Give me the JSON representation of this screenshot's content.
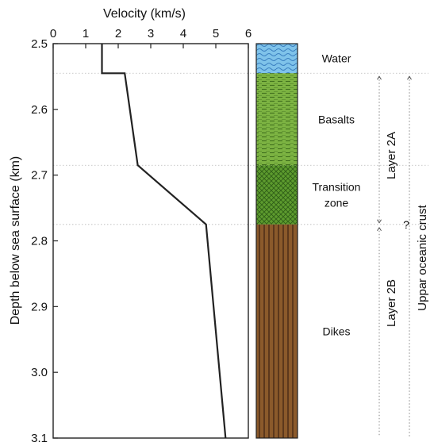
{
  "chart_data": {
    "type": "line",
    "title": "",
    "xlabel": "Velocity (km/s)",
    "ylabel": "Depth below sea surface (km)",
    "xlim": [
      0,
      6
    ],
    "ylim": [
      2.5,
      3.1
    ],
    "x_axis_position": "top",
    "y_inverted": true,
    "grid": false,
    "xticks": [
      0,
      1,
      2,
      3,
      4,
      5,
      6
    ],
    "yticks": [
      2.5,
      2.6,
      2.7,
      2.8,
      2.9,
      3.0,
      3.1
    ],
    "xtick_labels": [
      "0",
      "1",
      "2",
      "3",
      "4",
      "5",
      "6"
    ],
    "ytick_labels": [
      "2.5",
      "2.6",
      "2.7",
      "2.8",
      "2.9",
      "3.0",
      "3.1"
    ],
    "series": [
      {
        "color": "#222222",
        "points": [
          [
            1.5,
            2.5
          ],
          [
            1.5,
            2.545
          ],
          [
            2.2,
            2.545
          ],
          [
            2.6,
            2.685
          ],
          [
            4.7,
            2.775
          ],
          [
            5.3,
            3.1
          ]
        ]
      }
    ],
    "boundaries": [
      2.545,
      2.685,
      2.775
    ],
    "column": {
      "zones": [
        {
          "label_lines": [
            "Water"
          ],
          "top": 2.5,
          "bottom": 2.545,
          "fill": "#7fc3ea",
          "pattern": "waves"
        },
        {
          "label_lines": [
            "Basalts"
          ],
          "top": 2.545,
          "bottom": 2.685,
          "fill": "#7cb342",
          "pattern": "dashes"
        },
        {
          "label_lines": [
            "Transition",
            "zone"
          ],
          "top": 2.685,
          "bottom": 2.775,
          "fill": "#5d9b2e",
          "pattern": "cross"
        },
        {
          "label_lines": [
            "Dikes"
          ],
          "top": 2.775,
          "bottom": 3.1,
          "fill": "#8b5a2b",
          "pattern": "vertical"
        }
      ]
    },
    "annotations": [
      {
        "text": "Layer 2A",
        "top": 2.545,
        "bottom": 2.775,
        "rotation": -90
      },
      {
        "text": "Layer 2B",
        "top": 2.775,
        "bottom": 3.1,
        "rotation": -90
      },
      {
        "text": "Uppar oceanic crust",
        "top": 2.545,
        "bottom": 3.1,
        "rotation": -90
      },
      {
        "text": "?",
        "depth": 2.775
      }
    ]
  }
}
